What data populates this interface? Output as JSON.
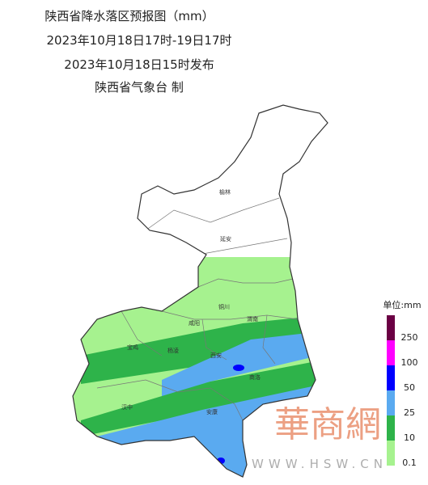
{
  "header": {
    "title": "陕西省降水落区预报图（mm）",
    "period": "2023年10月18日17时-19日17时",
    "issued": "2023年10月18日15时发布",
    "issuer": "陕西省气象台 制"
  },
  "cities": [
    "榆林",
    "延安",
    "铜川",
    "咸阳",
    "渭南",
    "宝鸡",
    "杨凌",
    "西安",
    "商洛",
    "汉中",
    "安康"
  ],
  "legend": {
    "title": "单位:mm",
    "items": [
      {
        "value": 250,
        "color": "#6b0044"
      },
      {
        "value": 100,
        "color": "#ff00ff"
      },
      {
        "value": 50,
        "color": "#0000ff"
      },
      {
        "value": 25,
        "color": "#5aaaf0"
      },
      {
        "value": 10,
        "color": "#2eb34a"
      },
      {
        "value": 0.1,
        "color": "#a6f28f"
      }
    ]
  },
  "watermark": {
    "brand": "華商網",
    "url": "WWW.HSW.CN"
  }
}
